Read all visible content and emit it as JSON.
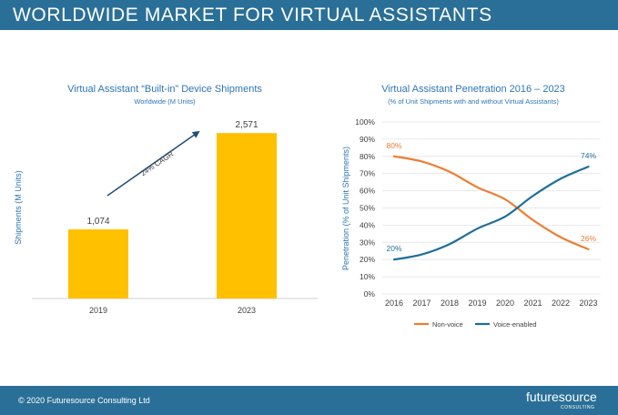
{
  "header": {
    "title": "WORLDWIDE MARKET FOR VIRTUAL ASSISTANTS"
  },
  "footer": {
    "copyright": "© 2020 Futuresource Consulting Ltd",
    "logo_word": "futuresource",
    "logo_sub": "CONSULTING"
  },
  "colors": {
    "header_bg": "#2a6f97",
    "bar": "#ffc000",
    "non_voice": "#ed7d31",
    "voice": "#1f6e9c",
    "title_text": "#2e75b6"
  },
  "chart_data": [
    {
      "type": "bar",
      "title": "Virtual Assistant “Built-in” Device Shipments",
      "subtitle": "Worldwide (M Units)",
      "ylabel": "Shipments (M Units)",
      "categories": [
        "2019",
        "2023"
      ],
      "values": [
        1074,
        2571
      ],
      "value_labels": [
        "1,074",
        "2,571"
      ],
      "annotation": "24% CAGR",
      "ylim": [
        0,
        2800
      ],
      "grid": false
    },
    {
      "type": "line",
      "title": "Virtual Assistant Penetration 2016 – 2023",
      "subtitle": "(% of Unit Shipments with and without Virtual Assistants)",
      "ylabel": "Penetration (% of Unit Shipments)",
      "x": [
        "2016",
        "2017",
        "2018",
        "2019",
        "2020",
        "2021",
        "2022",
        "2023"
      ],
      "y_ticks": [
        "0%",
        "10%",
        "20%",
        "30%",
        "40%",
        "50%",
        "60%",
        "70%",
        "80%",
        "90%",
        "100%"
      ],
      "ylim": [
        0,
        100
      ],
      "grid": true,
      "legend_position": "bottom",
      "series": [
        {
          "name": "Non-voice",
          "color": "#ed7d31",
          "values": [
            80,
            77,
            71,
            62,
            55,
            43,
            33,
            26
          ],
          "endpoint_labels": [
            "80%",
            "26%"
          ]
        },
        {
          "name": "Voice-enabled",
          "color": "#1f6e9c",
          "values": [
            20,
            23,
            29,
            38,
            45,
            57,
            67,
            74
          ],
          "endpoint_labels": [
            "20%",
            "74%"
          ]
        }
      ]
    }
  ]
}
